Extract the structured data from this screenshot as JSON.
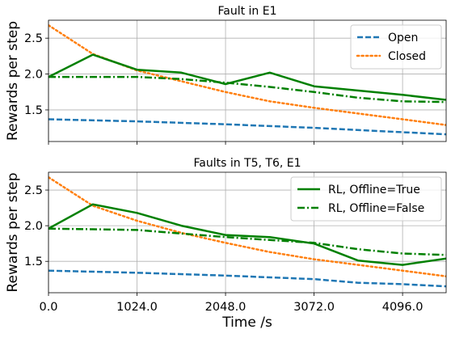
{
  "figure": {
    "xlabel": "Time /s",
    "ylabel": "Rewards per step"
  },
  "chart_data": [
    {
      "type": "line",
      "title": "Fault in E1",
      "ylabel": "Rewards per step",
      "xlabel": "",
      "xlim": [
        0,
        4600
      ],
      "ylim": [
        1.06,
        2.75
      ],
      "xticks": [
        "0.0",
        "1024.0",
        "2048.0",
        "3072.0",
        "4096.0"
      ],
      "xtick_values": [
        0,
        1024,
        2048,
        3072,
        4096
      ],
      "show_xticklabels": false,
      "yticks": [
        "1.5",
        "2.0",
        "2.5"
      ],
      "ytick_values": [
        1.5,
        2.0,
        2.5
      ],
      "grid": true,
      "legend": "top-right",
      "legend_entries": [
        "Open",
        "Closed"
      ],
      "series": [
        {
          "name": "Open",
          "color": "#1f77b4",
          "style": "dashed",
          "x": [
            0,
            1024,
            2048,
            3072,
            4096,
            4600
          ],
          "values": [
            1.37,
            1.34,
            1.3,
            1.25,
            1.19,
            1.16
          ]
        },
        {
          "name": "Closed",
          "color": "#ff7f0e",
          "style": "dotted",
          "x": [
            0,
            512,
            1024,
            2048,
            2560,
            3072,
            4096,
            4600
          ],
          "values": [
            2.68,
            2.28,
            2.05,
            1.75,
            1.62,
            1.53,
            1.37,
            1.29
          ]
        },
        {
          "name": "",
          "color": "#008000",
          "style": "solid",
          "x": [
            0,
            512,
            1024,
            1536,
            2048,
            2560,
            3072,
            3584,
            4096,
            4600
          ],
          "values": [
            1.96,
            2.27,
            2.06,
            2.02,
            1.86,
            2.02,
            1.83,
            1.77,
            1.71,
            1.64
          ]
        },
        {
          "name": "",
          "color": "#008000",
          "style": "dashdot",
          "x": [
            0,
            512,
            1024,
            1536,
            2048,
            2560,
            3072,
            3584,
            4096,
            4600
          ],
          "values": [
            1.96,
            1.96,
            1.96,
            1.93,
            1.88,
            1.82,
            1.75,
            1.67,
            1.62,
            1.61
          ]
        }
      ]
    },
    {
      "type": "line",
      "title": "Faults in T5, T6, E1",
      "ylabel": "Rewards per step",
      "xlabel": "Time /s",
      "xlim": [
        0,
        4600
      ],
      "ylim": [
        1.06,
        2.75
      ],
      "xticks": [
        "0.0",
        "1024.0",
        "2048.0",
        "3072.0",
        "4096.0"
      ],
      "xtick_values": [
        0,
        1024,
        2048,
        3072,
        4096
      ],
      "show_xticklabels": true,
      "yticks": [
        "1.5",
        "2.0",
        "2.5"
      ],
      "ytick_values": [
        1.5,
        2.0,
        2.5
      ],
      "grid": true,
      "legend": "top-right",
      "legend_entries": [
        "RL, Offline=True",
        "RL, Offline=False"
      ],
      "series": [
        {
          "name": "",
          "color": "#1f77b4",
          "style": "dashed",
          "x": [
            0,
            1024,
            2048,
            3072,
            3584,
            4096,
            4600
          ],
          "values": [
            1.37,
            1.34,
            1.3,
            1.25,
            1.2,
            1.18,
            1.15
          ]
        },
        {
          "name": "",
          "color": "#ff7f0e",
          "style": "dotted",
          "x": [
            0,
            512,
            1024,
            1536,
            2048,
            2560,
            3072,
            3584,
            4096,
            4600
          ],
          "values": [
            2.68,
            2.28,
            2.07,
            1.9,
            1.76,
            1.63,
            1.53,
            1.45,
            1.37,
            1.29
          ]
        },
        {
          "name": "RL, Offline=True",
          "color": "#008000",
          "style": "solid",
          "x": [
            0,
            512,
            1024,
            1536,
            2048,
            2560,
            3072,
            3584,
            4096,
            4600
          ],
          "values": [
            1.96,
            2.3,
            2.18,
            2.0,
            1.87,
            1.84,
            1.75,
            1.51,
            1.45,
            1.54
          ]
        },
        {
          "name": "RL, Offline=False",
          "color": "#008000",
          "style": "dashdot",
          "x": [
            0,
            512,
            1024,
            1536,
            2048,
            2560,
            3072,
            3584,
            4096,
            4600
          ],
          "values": [
            1.96,
            1.95,
            1.94,
            1.89,
            1.84,
            1.8,
            1.76,
            1.67,
            1.61,
            1.59
          ]
        }
      ]
    }
  ]
}
